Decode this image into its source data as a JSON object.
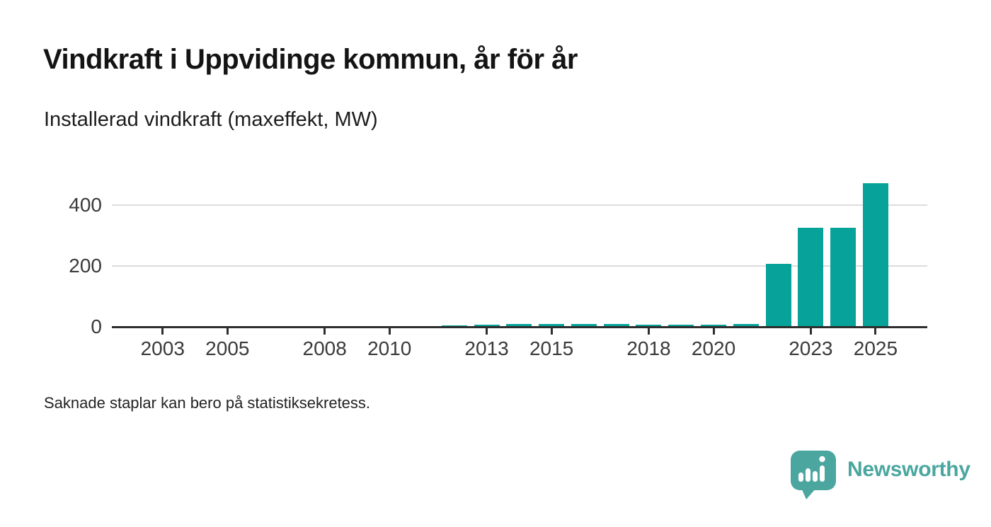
{
  "header": {
    "title": "Vindkraft i Uppvidinge kommun, år för år",
    "subtitle": "Installerad vindkraft (maxeffekt, MW)"
  },
  "chart_data": {
    "type": "bar",
    "title": "Vindkraft i Uppvidinge kommun, år för år",
    "subtitle": "Installerad vindkraft (maxeffekt, MW)",
    "ylabel": "Installerad vindkraft (maxeffekt, MW)",
    "xlabel": "",
    "unit": "MW",
    "categories": [
      2002,
      2003,
      2004,
      2005,
      2006,
      2007,
      2008,
      2009,
      2010,
      2011,
      2012,
      2013,
      2014,
      2015,
      2016,
      2017,
      2018,
      2019,
      2020,
      2021,
      2022,
      2023,
      2024,
      2025
    ],
    "values": [
      0,
      0,
      0,
      0,
      0,
      0,
      0,
      0,
      0,
      0,
      5,
      7,
      9,
      10,
      9,
      9,
      8,
      8,
      8,
      9,
      207,
      326,
      326,
      472
    ],
    "x_tick_labels": [
      "2003",
      "2005",
      "2008",
      "2010",
      "2013",
      "2015",
      "2018",
      "2020",
      "2023",
      "2025"
    ],
    "y_ticks": [
      0,
      200,
      400
    ],
    "ylim": [
      0,
      490
    ],
    "grid": "horizontal-only",
    "legend": "none",
    "bar_color": "#07a39a",
    "axis_color": "#2e2e2e",
    "grid_color": "#dcdcdc",
    "label_color": "#3a3a3a"
  },
  "footnote": {
    "text": "Saknade staplar kan bero på statistiksekretess."
  },
  "branding": {
    "name": "Newsworthy",
    "color": "#4aa69f"
  }
}
